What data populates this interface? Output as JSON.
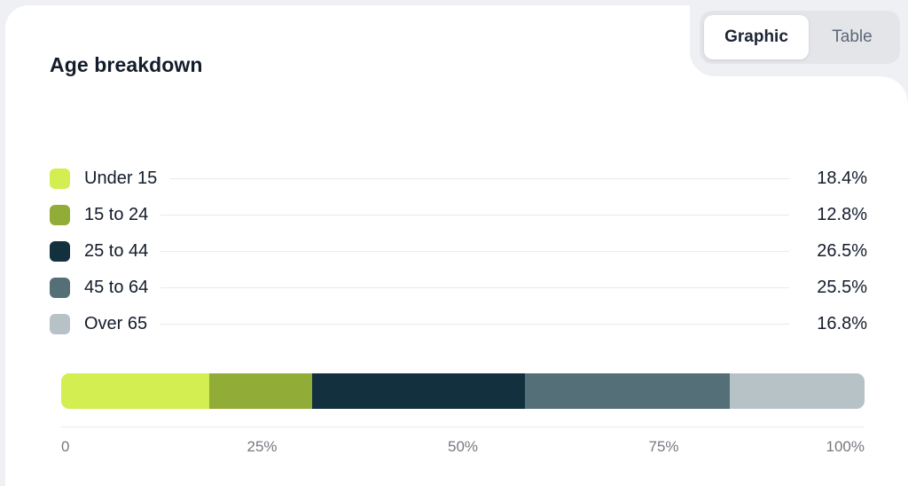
{
  "card": {
    "title": "Age breakdown"
  },
  "toggle": {
    "options": [
      {
        "label": "Graphic",
        "selected": true
      },
      {
        "label": "Table",
        "selected": false
      }
    ]
  },
  "chart_data": {
    "type": "bar",
    "variant": "horizontal-stacked",
    "title": "Age breakdown",
    "categories": [
      "Under 15",
      "15 to 24",
      "25 to 44",
      "45 to 64",
      "Over 65"
    ],
    "values": [
      18.4,
      12.8,
      26.5,
      25.5,
      16.8
    ],
    "value_labels": [
      "18.4%",
      "12.8%",
      "26.5%",
      "25.5%",
      "16.8%"
    ],
    "colors": [
      "#d2ee51",
      "#91ac37",
      "#12303e",
      "#556f79",
      "#b7c2c7"
    ],
    "xlim": [
      0,
      100
    ],
    "x_ticks": [
      "0",
      "25%",
      "50%",
      "75%",
      "100%"
    ],
    "legend_position": "left",
    "grid": false
  },
  "theme": {
    "page_bg": "#eff0f3",
    "card_bg": "#ffffff",
    "toggle_bg": "#e3e5e9",
    "toggle_selected_bg": "#ffffff",
    "text_primary": "#131c2b",
    "text_muted": "#5d6777",
    "axis_text": "#75797f",
    "line": "#e9eaec"
  }
}
